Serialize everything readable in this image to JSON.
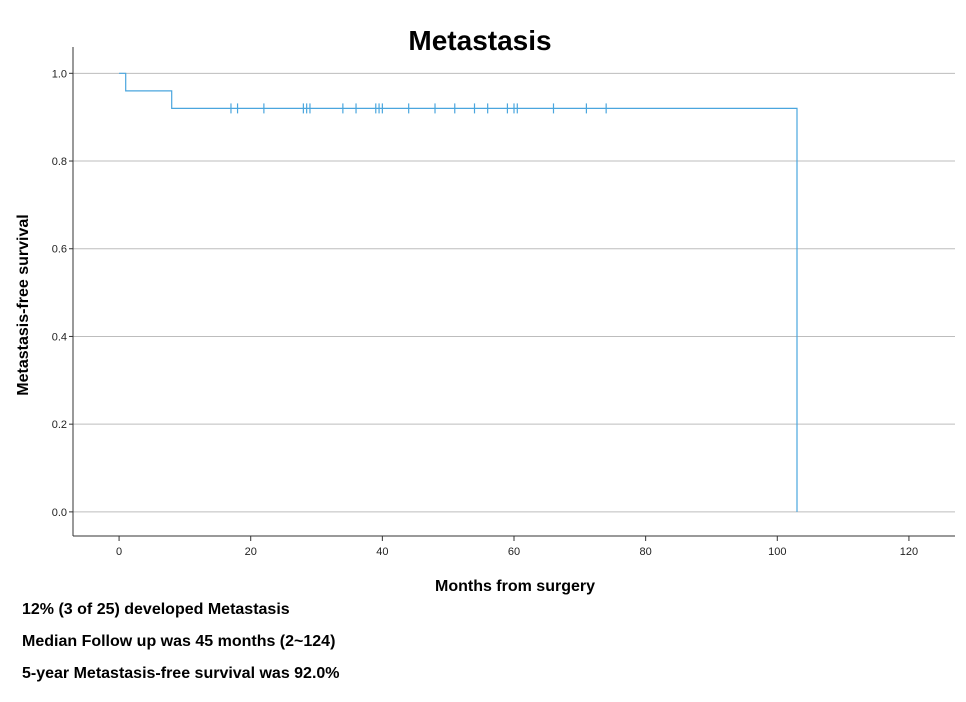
{
  "chart_data": {
    "type": "line",
    "title": "Metastasis",
    "xlabel": "Months from surgery",
    "ylabel": "Metastasis-free survival",
    "xlim": [
      -7,
      127
    ],
    "ylim": [
      -0.055,
      1.06
    ],
    "xticks": [
      0,
      20,
      40,
      60,
      80,
      100,
      120
    ],
    "yticks": [
      0.0,
      0.2,
      0.4,
      0.6,
      0.8,
      1.0
    ],
    "ytick_labels": [
      "0.0",
      "0.2",
      "0.4",
      "0.6",
      "0.8",
      "1.0"
    ],
    "grid": "horizontal",
    "line_color": "#4aa6de",
    "series": [
      {
        "step_points": [
          [
            0,
            1.0
          ],
          [
            1,
            1.0
          ],
          [
            1,
            0.96
          ],
          [
            8,
            0.96
          ],
          [
            8,
            0.92
          ],
          [
            103,
            0.92
          ],
          [
            103,
            0.0
          ]
        ],
        "censored": [
          [
            17,
            0.92
          ],
          [
            18,
            0.92
          ],
          [
            22,
            0.92
          ],
          [
            28,
            0.92
          ],
          [
            28.5,
            0.92
          ],
          [
            29,
            0.92
          ],
          [
            34,
            0.92
          ],
          [
            36,
            0.92
          ],
          [
            39,
            0.92
          ],
          [
            39.5,
            0.92
          ],
          [
            40,
            0.92
          ],
          [
            44,
            0.92
          ],
          [
            48,
            0.92
          ],
          [
            51,
            0.92
          ],
          [
            54,
            0.92
          ],
          [
            56,
            0.92
          ],
          [
            59,
            0.92
          ],
          [
            60,
            0.92
          ],
          [
            60.5,
            0.92
          ],
          [
            66,
            0.92
          ],
          [
            71,
            0.92
          ],
          [
            74,
            0.92
          ]
        ]
      }
    ]
  },
  "notes": [
    "12% (3 of 25) developed Metastasis",
    "Median Follow up was 45 months (2~124)",
    "5-year Metastasis-free survival was 92.0%"
  ]
}
